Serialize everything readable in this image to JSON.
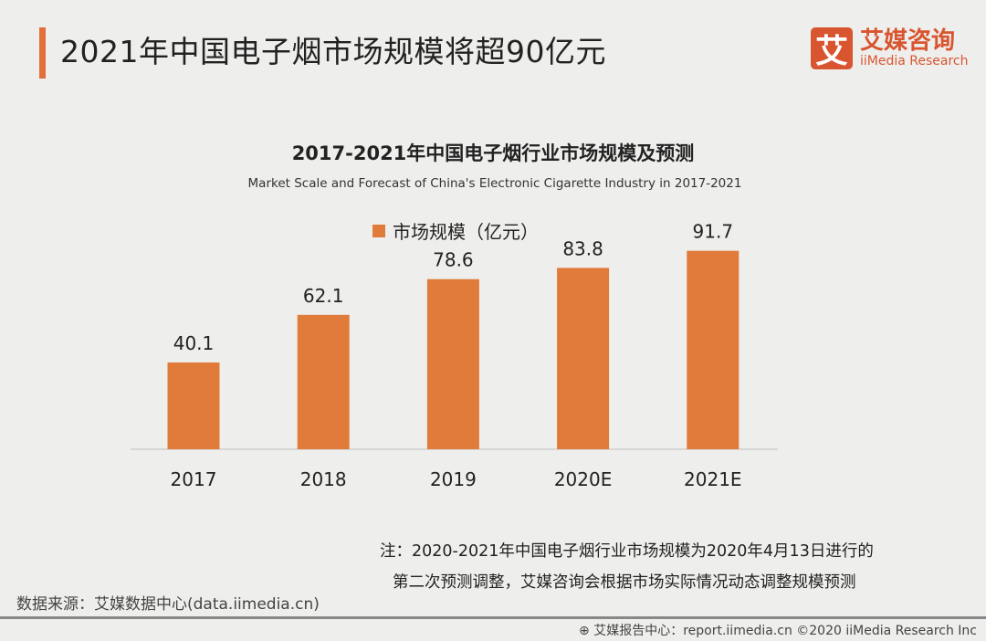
{
  "header": {
    "title": "2021年中国电子烟市场规模将超90亿元"
  },
  "logo": {
    "mark": "艾",
    "cn": "艾媒咨询",
    "en": "iiMedia Research"
  },
  "chart_data": {
    "type": "bar",
    "title": "2017-2021年中国电子烟行业市场规模及预测",
    "subtitle": "Market Scale and Forecast of China's Electronic Cigarette Industry in 2017-2021",
    "categories": [
      "2017",
      "2018",
      "2019",
      "2020E",
      "2021E"
    ],
    "series": [
      {
        "name": "市场规模（亿元）",
        "values": [
          40.1,
          62.1,
          78.6,
          83.8,
          91.7
        ]
      }
    ],
    "data_labels": [
      "40.1",
      "62.1",
      "78.6",
      "83.8",
      "91.7"
    ],
    "color": "#e07b39",
    "legend_position": "top",
    "grid": false,
    "ylim": [
      0,
      100
    ]
  },
  "note": {
    "line1": "注：2020-2021年中国电子烟行业市场规模为2020年4月13日进行的",
    "line2": "第二次预测调整，艾媒咨询会根据市场实际情况动态调整规模预测"
  },
  "source": "数据来源：艾媒数据中心(data.iimedia.cn)",
  "footer": "艾媒报告中心：report.iimedia.cn  ©2020  iiMedia Research Inc"
}
